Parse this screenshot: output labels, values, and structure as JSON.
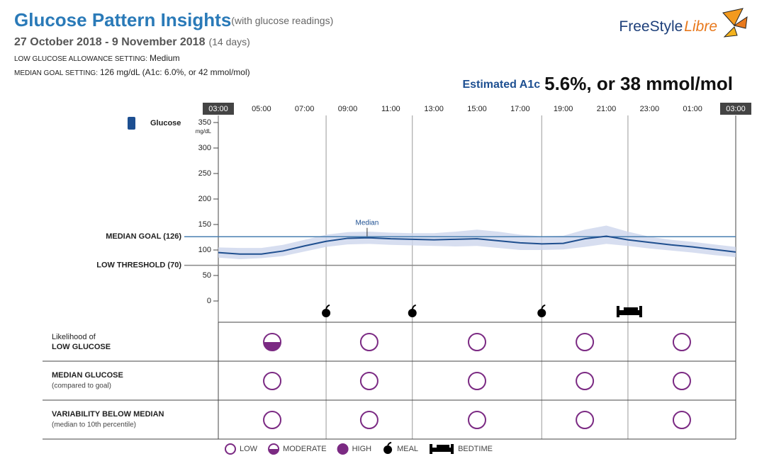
{
  "header": {
    "title": "Glucose Pattern Insights",
    "subtitle": "(with glucose readings)",
    "date_range": "27 October 2018 - 9 November 2018",
    "days": "(14 days)",
    "low_allowance_label": "LOW GLUCOSE ALLOWANCE SETTING:",
    "low_allowance_value": "Medium",
    "median_goal_label": "MEDIAN GOAL SETTING:",
    "median_goal_value": "126 mg/dL (A1c: 6.0%, or 42 mmol/mol)",
    "a1c_label": "Estimated A1c",
    "a1c_value": "5.6%, or 38 mmol/mol",
    "logo": {
      "brand": "FreeStyle",
      "product": "Libre"
    }
  },
  "chart_data": {
    "type": "line",
    "y_label": "Glucose",
    "y_unit": "mg/dL",
    "x": [
      3,
      4,
      5,
      6,
      7,
      8,
      9,
      10,
      11,
      12,
      13,
      14,
      15,
      16,
      17,
      18,
      19,
      20,
      21,
      22,
      23,
      24,
      25,
      26,
      27
    ],
    "series": [
      {
        "name": "Median",
        "color": "#1f4f8f",
        "values": [
          95,
          92,
          92,
          98,
          108,
          117,
          123,
          124,
          122,
          121,
          120,
          121,
          122,
          118,
          114,
          112,
          113,
          122,
          127,
          120,
          115,
          110,
          106,
          101,
          96
        ]
      }
    ],
    "band": {
      "color": "#cdd6ec",
      "low": [
        85,
        82,
        84,
        88,
        97,
        106,
        111,
        112,
        110,
        109,
        108,
        107,
        108,
        104,
        100,
        100,
        101,
        106,
        112,
        108,
        103,
        99,
        95,
        90,
        86
      ],
      "high": [
        105,
        104,
        104,
        110,
        120,
        130,
        135,
        136,
        134,
        133,
        133,
        136,
        140,
        136,
        130,
        127,
        128,
        140,
        148,
        136,
        126,
        120,
        116,
        111,
        106
      ]
    },
    "xlim": [
      3,
      27
    ],
    "xticks": [
      {
        "value": 3,
        "label": "03:00"
      },
      {
        "value": 5,
        "label": "05:00"
      },
      {
        "value": 7,
        "label": "07:00"
      },
      {
        "value": 9,
        "label": "09:00"
      },
      {
        "value": 11,
        "label": "11:00"
      },
      {
        "value": 13,
        "label": "13:00"
      },
      {
        "value": 15,
        "label": "15:00"
      },
      {
        "value": 17,
        "label": "17:00"
      },
      {
        "value": 19,
        "label": "19:00"
      },
      {
        "value": 21,
        "label": "21:00"
      },
      {
        "value": 23,
        "label": "23:00"
      },
      {
        "value": 25,
        "label": "01:00"
      },
      {
        "value": 27,
        "label": "03:00"
      }
    ],
    "ylim": [
      0,
      350
    ],
    "yticks": [
      0,
      50,
      100,
      150,
      200,
      250,
      300,
      350
    ],
    "reference_lines": [
      {
        "label": "MEDIAN GOAL (126)",
        "value": 126,
        "color": "#4a7fb0"
      },
      {
        "label": "LOW THRESHOLD (70)",
        "value": 70,
        "color": "#888888"
      }
    ],
    "events": [
      {
        "kind": "meal",
        "x": 8
      },
      {
        "kind": "meal",
        "x": 12
      },
      {
        "kind": "meal",
        "x": 18
      },
      {
        "kind": "bedtime",
        "x": 22
      }
    ]
  },
  "insights": {
    "rows": [
      {
        "prefix": "Likelihood of",
        "title": "LOW GLUCOSE",
        "levels": [
          "moderate",
          "low",
          "low",
          "low",
          "low"
        ]
      },
      {
        "title": "MEDIAN GLUCOSE",
        "note": "(compared to goal)",
        "levels": [
          "low",
          "low",
          "low",
          "low",
          "low"
        ]
      },
      {
        "title": "VARIABILITY BELOW MEDIAN",
        "note": "(median to 10th percentile)",
        "levels": [
          "low",
          "low",
          "low",
          "low",
          "low"
        ]
      }
    ]
  },
  "legend": {
    "items": [
      {
        "label": "LOW",
        "kind": "low"
      },
      {
        "label": "MODERATE",
        "kind": "moderate"
      },
      {
        "label": "HIGH",
        "kind": "high"
      },
      {
        "label": "MEAL",
        "kind": "meal"
      },
      {
        "label": "BEDTIME",
        "kind": "bedtime"
      }
    ]
  }
}
